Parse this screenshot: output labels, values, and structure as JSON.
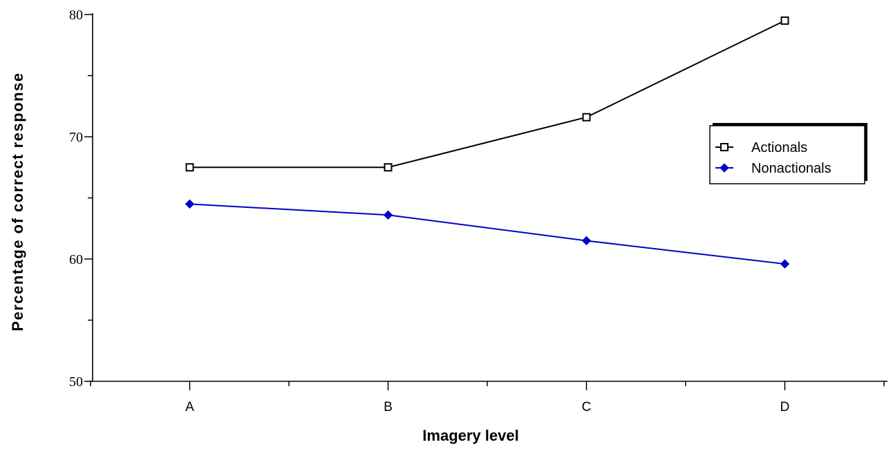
{
  "chart_data": {
    "type": "line",
    "categories": [
      "A",
      "B",
      "C",
      "D"
    ],
    "series": [
      {
        "name": "Actionals",
        "values": [
          67.5,
          67.5,
          71.6,
          79.5
        ],
        "color": "#000000",
        "marker": "open-square"
      },
      {
        "name": "Nonactionals",
        "values": [
          64.5,
          63.6,
          61.5,
          59.6
        ],
        "color": "#0000c8",
        "marker": "filled-diamond"
      }
    ],
    "xlabel": "Imagery level",
    "ylabel": "Percentage of correct response",
    "ylim": [
      50,
      80
    ],
    "yticks": [
      50,
      60,
      70,
      80
    ],
    "grid": false,
    "legend_position": "right"
  }
}
